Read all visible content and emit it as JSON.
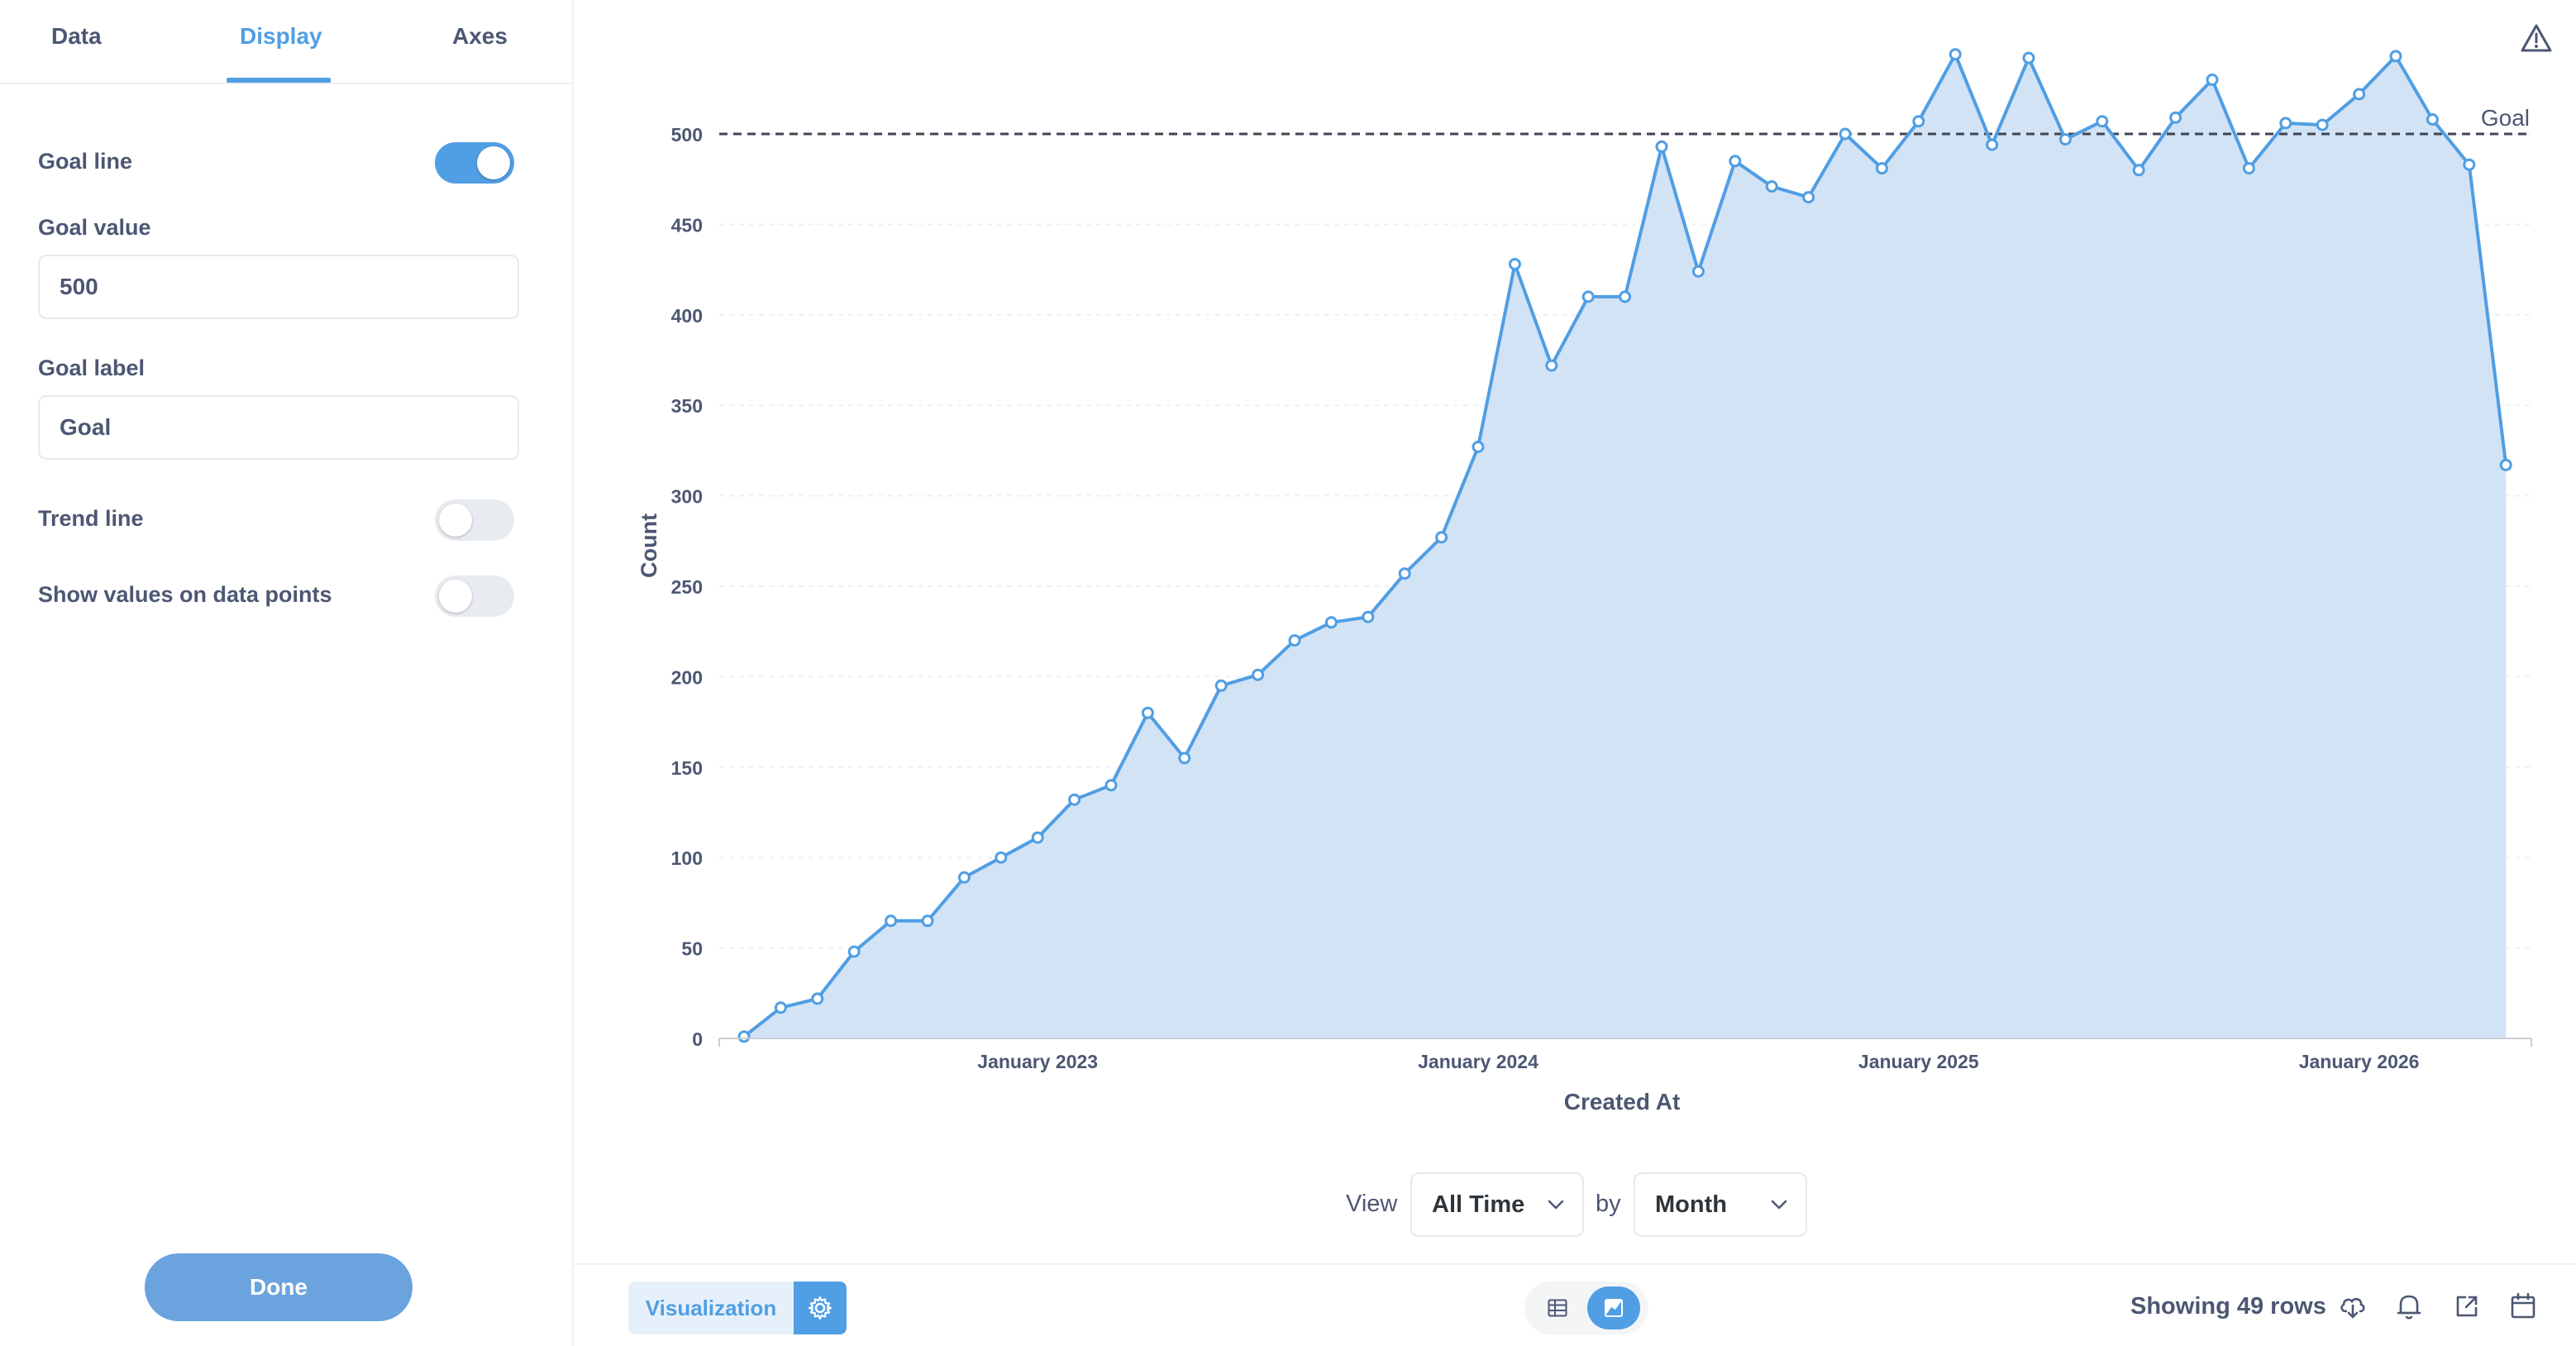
{
  "sidebar": {
    "tabs": [
      {
        "label": "Data"
      },
      {
        "label": "Display"
      },
      {
        "label": "Axes"
      }
    ],
    "active_tab": "Display",
    "goal_line": {
      "label": "Goal line",
      "enabled": true
    },
    "goal_value": {
      "label": "Goal value",
      "value": "500"
    },
    "goal_label": {
      "label": "Goal label",
      "value": "Goal"
    },
    "trend_line": {
      "label": "Trend line",
      "enabled": false
    },
    "show_values": {
      "label": "Show values on data points",
      "enabled": false
    },
    "done_label": "Done"
  },
  "controls": {
    "view_label": "View",
    "view_value": "All Time",
    "by_label": "by",
    "by_value": "Month"
  },
  "footer": {
    "visualization_label": "Visualization",
    "rows_text": "Showing 49 rows"
  },
  "colors": {
    "accent": "#509ee3",
    "area_fill": "#d3e3f6",
    "goal_line": "#4c5773"
  },
  "icons": [
    "warning-icon",
    "chevron-down-icon",
    "gear-icon",
    "table-icon",
    "area-chart-icon",
    "download-icon",
    "bell-icon",
    "share-icon",
    "calendar-icon"
  ],
  "chart_data": {
    "type": "area",
    "xlabel": "Created At",
    "ylabel": "Count",
    "ylim": [
      0,
      500
    ],
    "yticks": [
      0,
      50,
      100,
      150,
      200,
      250,
      300,
      350,
      400,
      450,
      500
    ],
    "xticks": [
      "January 2023",
      "January 2024",
      "January 2025",
      "January 2026"
    ],
    "goal": {
      "value": 500,
      "label": "Goal"
    },
    "grid": true,
    "x": [
      "2022-05",
      "2022-06",
      "2022-07",
      "2022-08",
      "2022-09",
      "2022-10",
      "2022-11",
      "2022-12",
      "2023-01",
      "2023-02",
      "2023-03",
      "2023-04",
      "2023-05",
      "2023-06",
      "2023-07",
      "2023-08",
      "2023-09",
      "2023-10",
      "2023-11",
      "2023-12",
      "2024-01",
      "2024-02",
      "2024-03",
      "2024-04",
      "2024-05",
      "2024-06",
      "2024-07",
      "2024-08",
      "2024-09",
      "2024-10",
      "2024-11",
      "2024-12",
      "2025-01",
      "2025-02",
      "2025-03",
      "2025-04",
      "2025-05",
      "2025-06",
      "2025-07",
      "2025-08",
      "2025-09",
      "2025-10",
      "2025-11",
      "2025-12",
      "2026-01",
      "2026-02",
      "2026-03",
      "2026-04",
      "2026-05"
    ],
    "series": [
      {
        "values": [
          1,
          17,
          22,
          48,
          65,
          65,
          89,
          100,
          111,
          132,
          140,
          180,
          155,
          195,
          201,
          220,
          230,
          233,
          257,
          277,
          327,
          428,
          372,
          410,
          410,
          493,
          424,
          485,
          471,
          465,
          500,
          481,
          507,
          544,
          494,
          542,
          497,
          507,
          480,
          509,
          530,
          481,
          506,
          505,
          522,
          543,
          508,
          483,
          317
        ]
      }
    ]
  }
}
